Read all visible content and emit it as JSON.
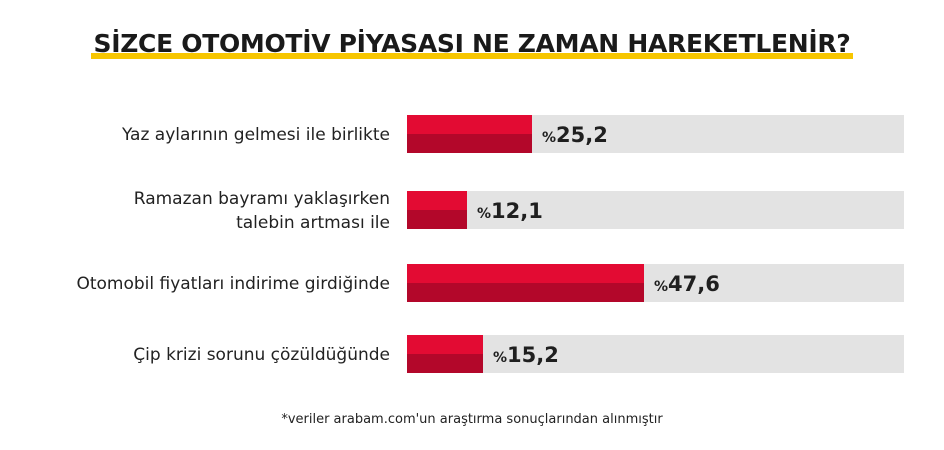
{
  "title": "SİZCE OTOMOTİV PİYASASI NE ZAMAN HAREKETLENİR?",
  "footnote": "*veriler arabam.com'un araştırma sonuçlarından alınmıştır",
  "colors": {
    "bar_top": "#e30b33",
    "bar_bottom": "#b3072a",
    "track": "#e3e3e3",
    "accent_underline": "#f7c600"
  },
  "chart_data": {
    "type": "bar",
    "orientation": "horizontal",
    "categories": [
      [
        "Yaz aylarının gelmesi ile birlikte"
      ],
      [
        "Ramazan bayramı yaklaşırken",
        "talebin artması ile"
      ],
      [
        "Otomobil fiyatları indirime girdiğinde"
      ],
      [
        "Çip krizi sorunu çözüldüğünde"
      ]
    ],
    "values": [
      25.2,
      12.1,
      47.6,
      15.2
    ],
    "value_labels": [
      "25,2",
      "12,1",
      "47,6",
      "15,2"
    ],
    "value_prefix": "%",
    "xlim": [
      0,
      100
    ],
    "grid": false,
    "legend": "none"
  }
}
